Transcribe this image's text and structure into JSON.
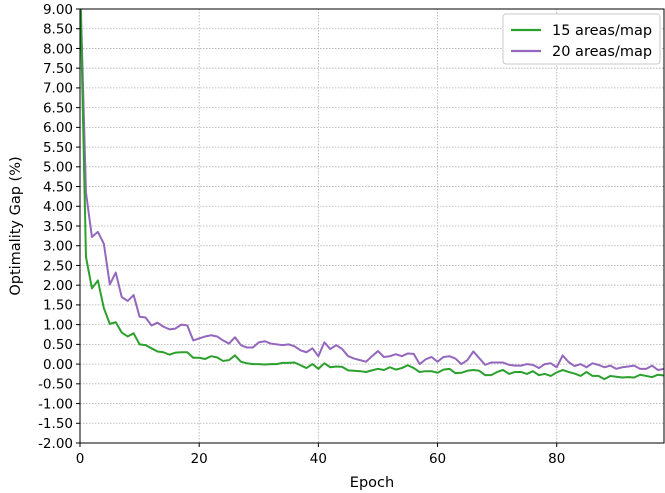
{
  "chart_data": {
    "type": "line",
    "title": "",
    "xlabel": "Epoch",
    "ylabel": "Optimality Gap (%)",
    "xlim": [
      0,
      98
    ],
    "ylim": [
      -2.0,
      9.0
    ],
    "x_ticks": [
      0,
      20,
      40,
      60,
      80
    ],
    "x_tick_labels": [
      "0",
      "20",
      "40",
      "60",
      "80"
    ],
    "y_ticks": [
      -2,
      -1.5,
      -1,
      -0.5,
      0,
      0.5,
      1,
      1.5,
      2,
      2.5,
      3,
      3.5,
      4,
      4.5,
      5,
      5.5,
      6,
      6.5,
      7,
      7.5,
      8,
      8.5,
      9
    ],
    "y_tick_labels": [
      "-2.00",
      "-1.50",
      "-1.00",
      "-0.50",
      "0.00",
      "0.50",
      "1.00",
      "1.50",
      "2.00",
      "2.50",
      "3.00",
      "3.50",
      "4.00",
      "4.50",
      "5.00",
      "5.50",
      "6.00",
      "6.50",
      "7.00",
      "7.50",
      "8.00",
      "8.50",
      "9.00"
    ],
    "grid": true,
    "legend_position": "top-right",
    "series": [
      {
        "name": "15 areas/map",
        "color": "#2ca02c",
        "values": [
          9.8,
          2.72,
          1.92,
          2.12,
          1.42,
          1.02,
          1.06,
          0.8,
          0.7,
          0.78,
          0.5,
          0.48,
          0.4,
          0.32,
          0.3,
          0.24,
          0.29,
          0.3,
          0.3,
          0.16,
          0.16,
          0.13,
          0.2,
          0.17,
          0.08,
          0.1,
          0.22,
          0.06,
          0.02,
          0.0,
          0.0,
          -0.01,
          0.0,
          0.0,
          0.03,
          0.03,
          0.04,
          -0.03,
          -0.1,
          0.0,
          -0.12,
          0.02,
          -0.08,
          -0.06,
          -0.07,
          -0.16,
          -0.17,
          -0.18,
          -0.2,
          -0.16,
          -0.12,
          -0.15,
          -0.08,
          -0.14,
          -0.1,
          -0.03,
          -0.1,
          -0.2,
          -0.18,
          -0.18,
          -0.22,
          -0.14,
          -0.12,
          -0.23,
          -0.22,
          -0.17,
          -0.15,
          -0.17,
          -0.28,
          -0.28,
          -0.2,
          -0.15,
          -0.25,
          -0.2,
          -0.2,
          -0.25,
          -0.18,
          -0.28,
          -0.25,
          -0.3,
          -0.21,
          -0.15,
          -0.2,
          -0.24,
          -0.3,
          -0.2,
          -0.3,
          -0.3,
          -0.38,
          -0.3,
          -0.32,
          -0.34,
          -0.33,
          -0.34,
          -0.27,
          -0.3,
          -0.33,
          -0.27,
          -0.29
        ]
      },
      {
        "name": "20 areas/map",
        "color": "#9467bd",
        "values": [
          9.8,
          4.35,
          3.22,
          3.35,
          3.05,
          2.02,
          2.32,
          1.7,
          1.6,
          1.75,
          1.2,
          1.18,
          0.98,
          1.05,
          0.95,
          0.88,
          0.9,
          1.0,
          0.98,
          0.6,
          0.65,
          0.7,
          0.73,
          0.7,
          0.6,
          0.52,
          0.68,
          0.48,
          0.42,
          0.42,
          0.55,
          0.58,
          0.52,
          0.5,
          0.48,
          0.5,
          0.45,
          0.35,
          0.3,
          0.4,
          0.2,
          0.55,
          0.38,
          0.48,
          0.38,
          0.2,
          0.14,
          0.1,
          0.06,
          0.2,
          0.33,
          0.18,
          0.2,
          0.25,
          0.2,
          0.27,
          0.26,
          0.0,
          0.12,
          0.18,
          0.06,
          0.18,
          0.2,
          0.14,
          0.0,
          0.1,
          0.32,
          0.15,
          -0.02,
          0.04,
          0.04,
          0.04,
          -0.02,
          -0.04,
          -0.04,
          0.0,
          -0.02,
          -0.1,
          0.0,
          0.02,
          -0.08,
          0.22,
          0.05,
          -0.05,
          0.0,
          -0.08,
          0.02,
          -0.02,
          -0.08,
          -0.04,
          -0.12,
          -0.08,
          -0.06,
          -0.04,
          -0.12,
          -0.12,
          -0.04,
          -0.15,
          -0.12
        ]
      }
    ]
  }
}
